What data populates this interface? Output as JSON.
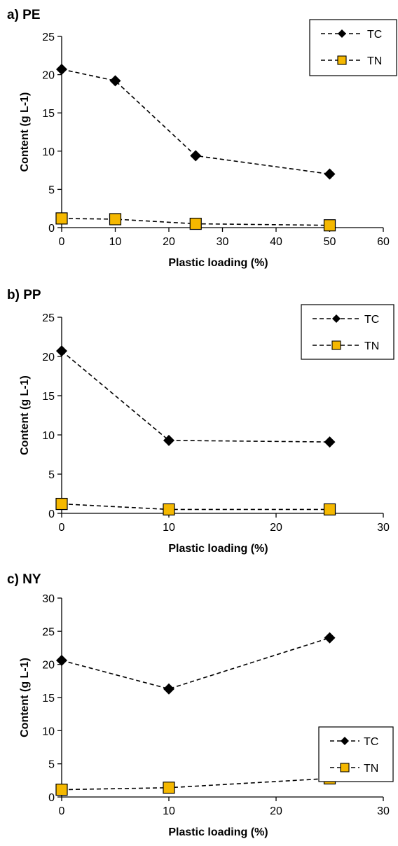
{
  "colors": {
    "tc_marker": "#000000",
    "tn_marker": "#f5b800",
    "tn_edge": "#000000",
    "axis": "#000000"
  },
  "chart_data": [
    {
      "type": "line",
      "title": "a) PE",
      "xlabel": "Plastic loading (%)",
      "ylabel": "Content (g L-1)",
      "xlim": [
        0,
        60
      ],
      "xticks": [
        0,
        10,
        20,
        30,
        40,
        50,
        60
      ],
      "ylim": [
        0,
        25
      ],
      "yticks": [
        0,
        5,
        10,
        15,
        20,
        25
      ],
      "legend_position": "top-right",
      "x": [
        0,
        10,
        25,
        50
      ],
      "series": [
        {
          "name": "TC",
          "marker": "diamond",
          "values": [
            20.7,
            19.2,
            9.4,
            7.0
          ]
        },
        {
          "name": "TN",
          "marker": "square",
          "values": [
            1.2,
            1.1,
            0.5,
            0.3
          ]
        }
      ]
    },
    {
      "type": "line",
      "title": "b) PP",
      "xlabel": "Plastic loading (%)",
      "ylabel": "Content (g L-1)",
      "xlim": [
        0,
        30
      ],
      "xticks": [
        0,
        10,
        20,
        30
      ],
      "ylim": [
        0,
        25
      ],
      "yticks": [
        0,
        5,
        10,
        15,
        20,
        25
      ],
      "legend_position": "top-right",
      "x": [
        0,
        10,
        25
      ],
      "series": [
        {
          "name": "TC",
          "marker": "diamond",
          "values": [
            20.7,
            9.3,
            9.1
          ]
        },
        {
          "name": "TN",
          "marker": "square",
          "values": [
            1.2,
            0.5,
            0.5
          ]
        }
      ]
    },
    {
      "type": "line",
      "title": "c) NY",
      "xlabel": "Plastic loading (%)",
      "ylabel": "Content (g L-1)",
      "xlim": [
        0,
        30
      ],
      "xticks": [
        0,
        10,
        20,
        30
      ],
      "ylim": [
        0,
        30
      ],
      "yticks": [
        0,
        5,
        10,
        15,
        20,
        25,
        30
      ],
      "legend_position": "middle-right",
      "x": [
        0,
        10,
        25
      ],
      "series": [
        {
          "name": "TC",
          "marker": "diamond",
          "values": [
            20.6,
            16.3,
            24.0
          ]
        },
        {
          "name": "TN",
          "marker": "square",
          "values": [
            1.1,
            1.4,
            2.8
          ]
        }
      ]
    }
  ]
}
